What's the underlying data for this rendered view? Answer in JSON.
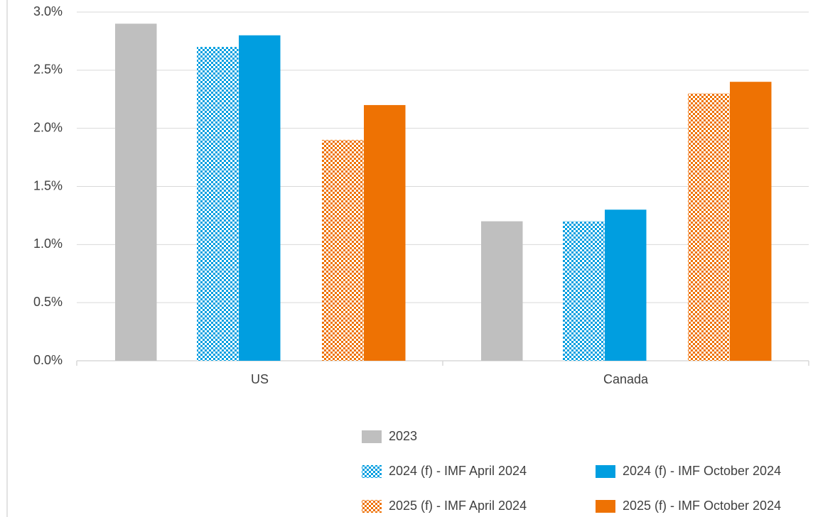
{
  "chart_data": {
    "type": "bar",
    "categories": [
      "US",
      "Canada"
    ],
    "series": [
      {
        "name": "2023",
        "color": "#bfbfbf",
        "values": [
          2.9,
          1.2
        ]
      },
      {
        "name": "2024 (f) - IMF April 2024",
        "color": "#009ee0",
        "pattern": "checker",
        "values": [
          2.7,
          1.2
        ]
      },
      {
        "name": "2024 (f) - IMF October 2024",
        "color": "#009ee0",
        "values": [
          2.8,
          1.3
        ]
      },
      {
        "name": "2025 (f) - IMF April 2024",
        "color": "#ee7203",
        "pattern": "checker",
        "values": [
          1.9,
          2.3
        ]
      },
      {
        "name": "2025 (f) - IMF October 2024",
        "color": "#ee7203",
        "values": [
          2.2,
          2.4
        ]
      }
    ],
    "ylim": [
      0,
      3
    ],
    "yticks": [
      {
        "value": 0,
        "label": "0.0%"
      },
      {
        "value": 0.5,
        "label": "0.5%"
      },
      {
        "value": 1,
        "label": "1.0%"
      },
      {
        "value": 1.5,
        "label": "1.5%"
      },
      {
        "value": 2,
        "label": "2.0%"
      },
      {
        "value": 2.5,
        "label": "2.5%"
      },
      {
        "value": 3,
        "label": "3.0%"
      }
    ],
    "grid": true
  }
}
